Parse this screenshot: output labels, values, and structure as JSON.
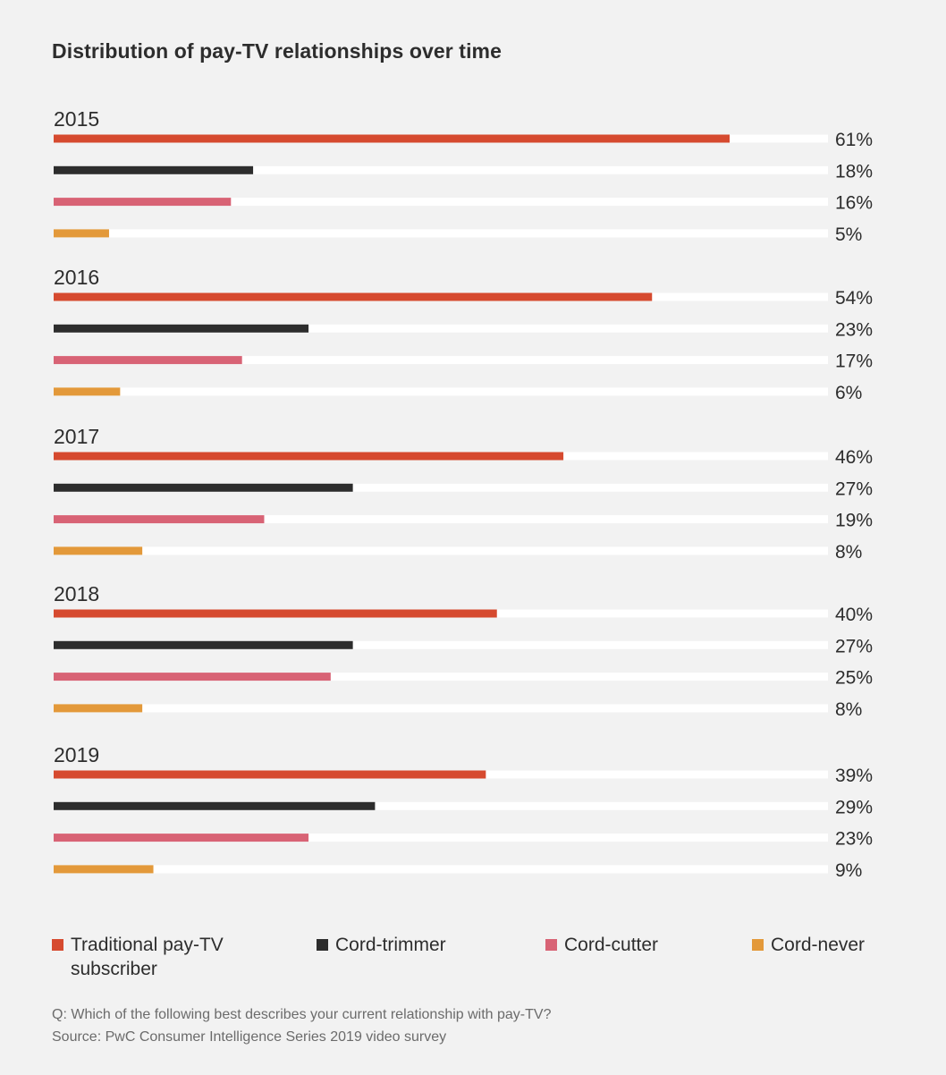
{
  "chart_data": {
    "type": "bar",
    "orientation": "horizontal",
    "title": "Distribution of pay-TV relationships over time",
    "unit": "%",
    "xlim": [
      0,
      100
    ],
    "groups": [
      "2015",
      "2016",
      "2017",
      "2018",
      "2019"
    ],
    "series": [
      {
        "name": "Traditional pay-TV subscriber",
        "color": "#d64a2f",
        "values": [
          61,
          54,
          46,
          40,
          39
        ]
      },
      {
        "name": "Cord-trimmer",
        "color": "#2d2d2d",
        "values": [
          18,
          23,
          27,
          27,
          29
        ]
      },
      {
        "name": "Cord-cutter",
        "color": "#d86375",
        "values": [
          16,
          17,
          19,
          25,
          23
        ]
      },
      {
        "name": "Cord-never",
        "color": "#e3993a",
        "values": [
          5,
          6,
          8,
          8,
          9
        ]
      }
    ],
    "value_labels": [
      [
        "61%",
        "18%",
        "16%",
        "5%"
      ],
      [
        "54%",
        "23%",
        "17%",
        "6%"
      ],
      [
        "46%",
        "27%",
        "19%",
        "8%"
      ],
      [
        "40%",
        "27%",
        "25%",
        "8%"
      ],
      [
        "39%",
        "29%",
        "23%",
        "9%"
      ]
    ],
    "legend_position": "bottom",
    "grid": false
  },
  "legend": [
    {
      "label_line1": "Traditional pay-TV",
      "label_line2": "subscriber",
      "color": "#d64a2f"
    },
    {
      "label_line1": "Cord-trimmer",
      "label_line2": "",
      "color": "#2d2d2d"
    },
    {
      "label_line1": "Cord-cutter",
      "label_line2": "",
      "color": "#d86375"
    },
    {
      "label_line1": "Cord-never",
      "label_line2": "",
      "color": "#e3993a"
    }
  ],
  "footnote": {
    "question": "Q: Which of the following best describes your current relationship with pay-TV?",
    "source": "Source: PwC Consumer Intelligence Series 2019 video survey"
  }
}
